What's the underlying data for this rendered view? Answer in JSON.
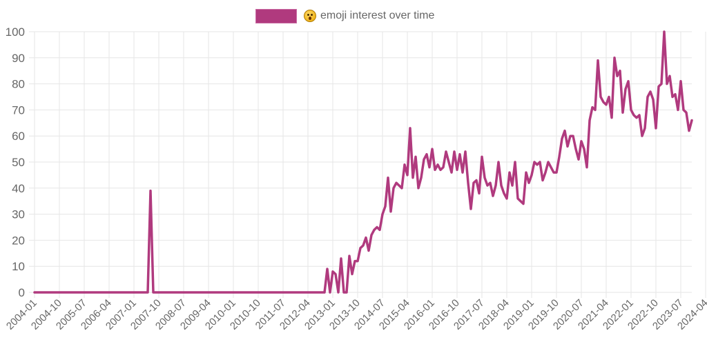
{
  "legend": {
    "label": "emoji interest over time",
    "emoji_icon": "astonished-face-emoji",
    "color": "#B03A7E"
  },
  "chart_data": {
    "type": "line",
    "title": "",
    "xlabel": "",
    "ylabel": "",
    "ylim": [
      0,
      100
    ],
    "yticks": [
      0,
      10,
      20,
      30,
      40,
      50,
      60,
      70,
      80,
      90,
      100
    ],
    "grid": true,
    "legend_position": "top",
    "xtick_labels": [
      "2004-01",
      "2004-10",
      "2005-07",
      "2006-04",
      "2007-01",
      "2007-10",
      "2008-07",
      "2009-04",
      "2010-01",
      "2010-10",
      "2011-07",
      "2012-04",
      "2013-01",
      "2013-10",
      "2014-07",
      "2015-04",
      "2016-01",
      "2016-10",
      "2017-07",
      "2018-04",
      "2019-01",
      "2019-10",
      "2020-07",
      "2021-04",
      "2022-01",
      "2022-10",
      "2023-07",
      "2024-04"
    ],
    "x_start": "2004-01",
    "x_end": "2024-04",
    "frequency": "monthly",
    "series": [
      {
        "name": "emoji interest over time",
        "color": "#B03A7E",
        "values": [
          0,
          0,
          0,
          0,
          0,
          0,
          0,
          0,
          0,
          0,
          0,
          0,
          0,
          0,
          0,
          0,
          0,
          0,
          0,
          0,
          0,
          0,
          0,
          0,
          0,
          0,
          0,
          0,
          0,
          0,
          0,
          0,
          0,
          0,
          0,
          0,
          0,
          0,
          0,
          0,
          0,
          0,
          39,
          0,
          0,
          0,
          0,
          0,
          0,
          0,
          0,
          0,
          0,
          0,
          0,
          0,
          0,
          0,
          0,
          0,
          0,
          0,
          0,
          0,
          0,
          0,
          0,
          0,
          0,
          0,
          0,
          0,
          0,
          0,
          0,
          0,
          0,
          0,
          0,
          0,
          0,
          0,
          0,
          0,
          0,
          0,
          0,
          0,
          0,
          0,
          0,
          0,
          0,
          0,
          0,
          0,
          0,
          0,
          0,
          0,
          0,
          0,
          0,
          0,
          0,
          0,
          9,
          0,
          8,
          7,
          0,
          13,
          0,
          0,
          14,
          7,
          12,
          12,
          17,
          18,
          21,
          16,
          22,
          24,
          25,
          24,
          30,
          33,
          44,
          31,
          40,
          42,
          41,
          40,
          49,
          45,
          63,
          44,
          52,
          40,
          44,
          51,
          53,
          48,
          55,
          47,
          49,
          47,
          48,
          54,
          50,
          46,
          54,
          47,
          53,
          46,
          54,
          42,
          32,
          42,
          43,
          38,
          52,
          44,
          41,
          42,
          37,
          41,
          50,
          41,
          38,
          36,
          46,
          41,
          50,
          36,
          35,
          34,
          46,
          42,
          45,
          50,
          49,
          50,
          43,
          46,
          50,
          48,
          46,
          46,
          52,
          59,
          62,
          56,
          60,
          60,
          55,
          51,
          58,
          55,
          48,
          66,
          71,
          70,
          89,
          75,
          73,
          72,
          75,
          67,
          90,
          83,
          85,
          69,
          78,
          81,
          70,
          68,
          67,
          68,
          60,
          63,
          75,
          77,
          74,
          63,
          79,
          80,
          100,
          80,
          83,
          75,
          76,
          70,
          81,
          70,
          69,
          62,
          66
        ]
      }
    ]
  }
}
